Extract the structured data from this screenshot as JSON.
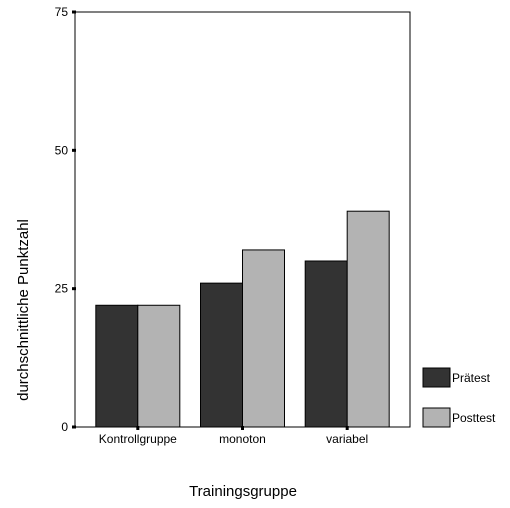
{
  "chart_data": {
    "type": "bar",
    "title": "",
    "xlabel": "Trainingsgruppe",
    "ylabel": "durchschnittliche Punktzahl",
    "categories": [
      "Kontrollgruppe",
      "monoton",
      "variabel"
    ],
    "series": [
      {
        "name": "Prätest",
        "values": [
          22,
          26,
          30
        ],
        "color": "#333333"
      },
      {
        "name": "Posttest",
        "values": [
          22,
          32,
          39
        ],
        "color": "#b3b3b3"
      }
    ],
    "ylim": [
      0,
      75
    ],
    "yticks": [
      0,
      25,
      50,
      75
    ],
    "grid": false,
    "legend": "right-bottom"
  }
}
